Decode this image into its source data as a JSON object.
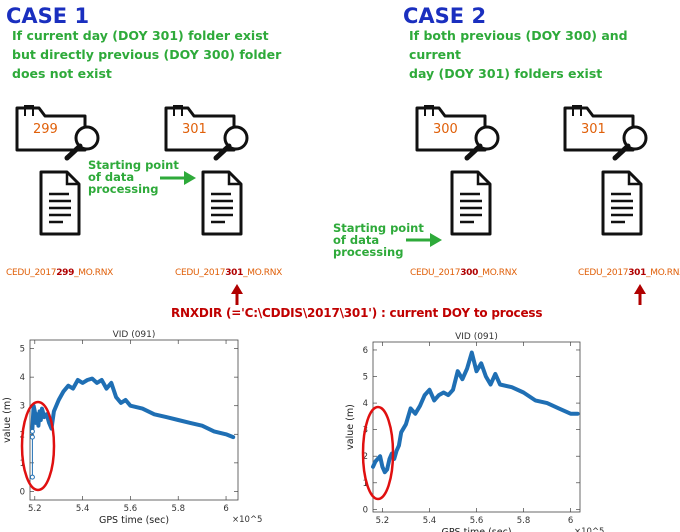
{
  "case1": {
    "title": "CASE 1",
    "desc": [
      "If current day (DOY 301) folder exist",
      "but directly previous (DOY 300) folder",
      "does not exist"
    ],
    "folder_left": "299",
    "folder_right": "301",
    "file_left": {
      "prefix": "CEDU_2017",
      "doy": "299",
      "suffix": "_MO.RNX"
    },
    "file_right": {
      "prefix": "CEDU_2017",
      "doy": "301",
      "suffix": "_MO.RNX"
    },
    "start_label": [
      "Starting point",
      "of data",
      "processing"
    ]
  },
  "case2": {
    "title": "CASE 2",
    "desc": [
      "If both previous (DOY 300) and current",
      "day (DOY 301) folders exist"
    ],
    "folder_left": "300",
    "folder_right": "301",
    "file_left": {
      "prefix": "CEDU_2017",
      "doy": "300",
      "suffix": "_MO.RNX"
    },
    "file_right": {
      "prefix": "CEDU_2017",
      "doy": "301",
      "suffix": "_MO.RNX"
    },
    "start_label": [
      "Starting point",
      "of data",
      "processing"
    ]
  },
  "rnxdir_note": "RNXDIR (='C:\\CDDIS\\2017\\301') : current DOY to process",
  "colors": {
    "title_blue": "#1a2fbf",
    "green": "#2eaa3a",
    "orange": "#e0600a",
    "red": "#c00000",
    "series": "#1f6fb4"
  },
  "chart_data": [
    {
      "type": "line",
      "title": "VID (091)",
      "xlabel": "GPS time (sec)",
      "ylabel": "value (m)",
      "x_exponent": "×10^5",
      "xlim": [
        5.18,
        6.05
      ],
      "ylim": [
        -0.3,
        5.3
      ],
      "xticks": [
        "5.2",
        "5.4",
        "5.6",
        "5.8",
        "6"
      ],
      "yticks": [
        "0",
        "1",
        "2",
        "3",
        "4",
        "5"
      ],
      "series": [
        {
          "x": [
            5.19,
            5.195,
            5.2,
            5.205,
            5.21,
            5.215,
            5.22,
            5.225,
            5.23,
            5.24,
            5.25,
            5.26,
            5.27,
            5.28,
            5.3,
            5.32,
            5.34,
            5.36,
            5.38,
            5.4,
            5.42,
            5.44,
            5.46,
            5.48,
            5.5,
            5.52,
            5.54,
            5.56,
            5.58,
            5.6,
            5.65,
            5.7,
            5.75,
            5.8,
            5.85,
            5.9,
            5.95,
            6.0,
            6.03
          ],
          "y": [
            2.2,
            3.0,
            2.8,
            2.4,
            2.7,
            2.3,
            2.8,
            2.5,
            2.9,
            2.6,
            2.7,
            2.4,
            2.2,
            2.8,
            3.2,
            3.5,
            3.7,
            3.6,
            3.9,
            3.8,
            3.9,
            3.95,
            3.8,
            3.9,
            3.6,
            3.8,
            3.3,
            3.1,
            3.2,
            3.0,
            2.9,
            2.7,
            2.6,
            2.5,
            2.4,
            2.3,
            2.1,
            2.0,
            1.9
          ]
        }
      ],
      "outliers": {
        "x": [
          5.19,
          5.19,
          5.19
        ],
        "y": [
          2.1,
          1.9,
          0.5
        ]
      },
      "highlight": "red ellipse around data start"
    },
    {
      "type": "line",
      "title": "VID (091)",
      "xlabel": "GPS time (sec)",
      "ylabel": "value (m)",
      "x_exponent": "×10^5",
      "xlim": [
        5.16,
        6.04
      ],
      "ylim": [
        -0.1,
        6.3
      ],
      "xticks": [
        "5.2",
        "5.4",
        "5.6",
        "5.8",
        "6"
      ],
      "yticks": [
        "0",
        "1",
        "2",
        "3",
        "4",
        "5",
        "6"
      ],
      "series": [
        {
          "x": [
            5.16,
            5.17,
            5.18,
            5.19,
            5.2,
            5.21,
            5.22,
            5.23,
            5.24,
            5.25,
            5.26,
            5.27,
            5.28,
            5.3,
            5.32,
            5.34,
            5.36,
            5.38,
            5.4,
            5.42,
            5.44,
            5.46,
            5.48,
            5.5,
            5.52,
            5.54,
            5.56,
            5.58,
            5.6,
            5.62,
            5.64,
            5.66,
            5.68,
            5.7,
            5.75,
            5.8,
            5.85,
            5.9,
            5.95,
            6.0,
            6.03
          ],
          "y": [
            1.6,
            1.8,
            1.9,
            2.0,
            1.6,
            1.4,
            1.5,
            1.9,
            2.1,
            1.9,
            2.2,
            2.4,
            2.9,
            3.2,
            3.8,
            3.6,
            3.9,
            4.3,
            4.5,
            4.1,
            4.3,
            4.4,
            4.3,
            4.5,
            5.2,
            4.9,
            5.3,
            5.9,
            5.2,
            5.5,
            5.0,
            4.7,
            5.1,
            4.7,
            4.6,
            4.4,
            4.1,
            4.0,
            3.8,
            3.6,
            3.6
          ]
        }
      ],
      "highlight": "red ellipse around data start"
    }
  ]
}
